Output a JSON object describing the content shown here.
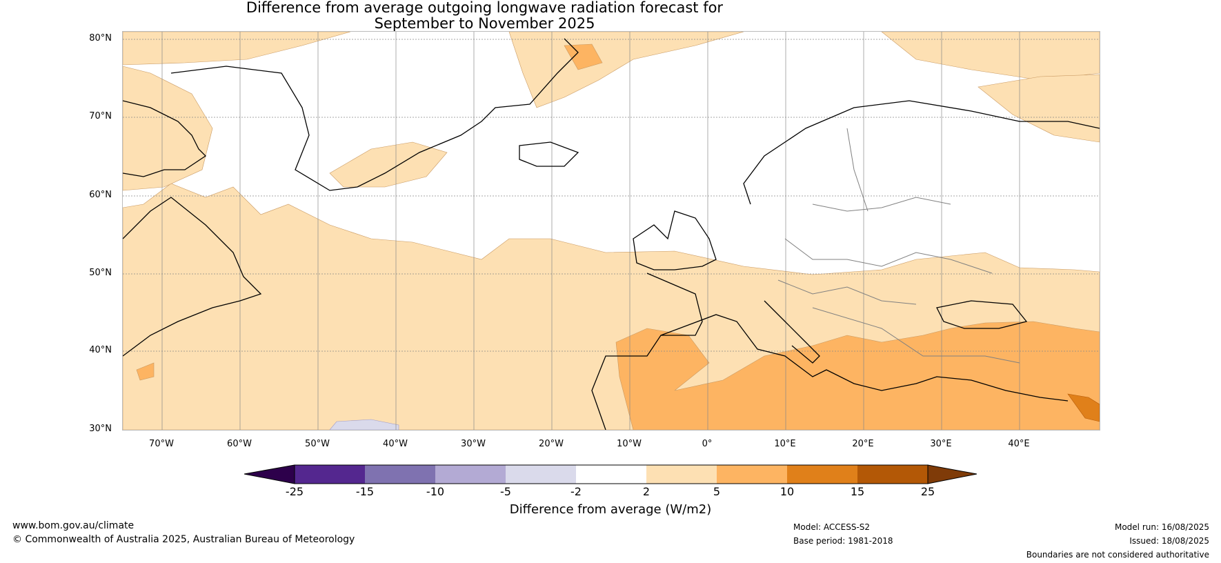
{
  "title": {
    "line1": "Difference from average outgoing longwave radiation forecast for",
    "line2": "September to November 2025"
  },
  "map": {
    "region": "North Atlantic and Europe",
    "lat_ticks": [
      "80°N",
      "70°N",
      "60°N",
      "50°N",
      "40°N",
      "30°N"
    ],
    "lon_ticks": [
      "70°W",
      "60°W",
      "50°W",
      "40°W",
      "30°W",
      "20°W",
      "10°W",
      "0°",
      "10°E",
      "20°E",
      "30°E",
      "40°E"
    ],
    "colors": {
      "band_m25_m15": "#54278f",
      "band_m15_m10": "#7f72b0",
      "band_m10_m5": "#b3aad4",
      "band_m5_m2": "#dadaeb",
      "band_m2_2": "#ffffff",
      "band_2_5": "#fde0b3",
      "band_5_10": "#fdb462",
      "band_10_15": "#e0801a",
      "band_15_25": "#b35806",
      "extend_low": "#2d004b",
      "extend_high": "#7f3b08",
      "coastline": "#000000",
      "borders": "#808080"
    }
  },
  "colorbar": {
    "labels": [
      "-25",
      "-15",
      "-10",
      "-5",
      "-2",
      "2",
      "5",
      "10",
      "15",
      "25"
    ],
    "title": "Difference from average (W/m2)"
  },
  "footer": {
    "website": "www.bom.gov.au/climate",
    "copyright": "© Commonwealth of Australia 2025, Australian Bureau of Meteorology",
    "model": "Model: ACCESS-S2",
    "base_period": "Base period: 1981-2018",
    "model_run": "Model run: 16/08/2025",
    "issued": "Issued: 18/08/2025",
    "disclaimer": "Boundaries are not considered authoritative"
  }
}
